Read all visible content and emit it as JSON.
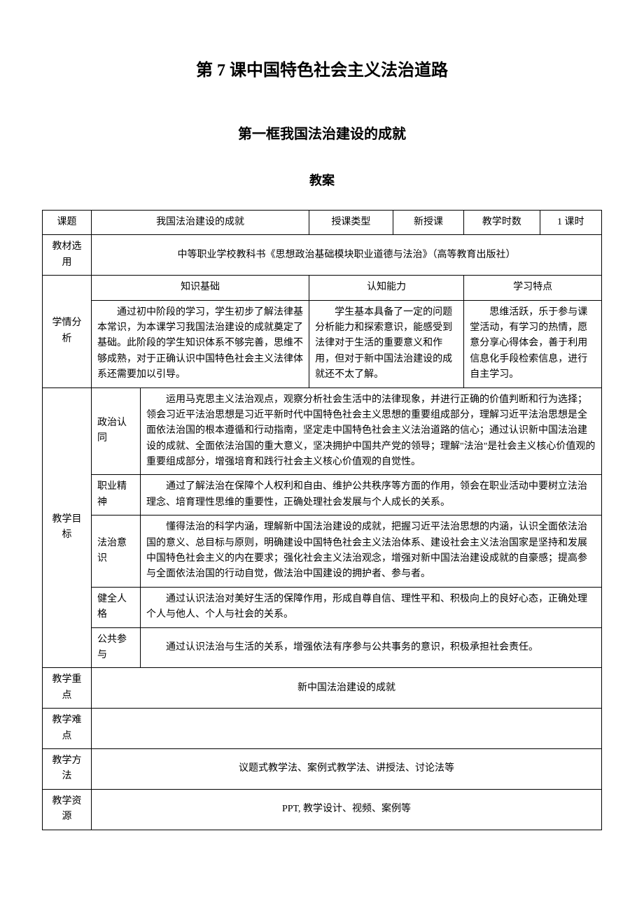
{
  "titles": {
    "main": "第 7 课中国特色社会主义法治道路",
    "sub": "第一框我国法治建设的成就",
    "label": "教案"
  },
  "row1": {
    "label1": "课题",
    "val1": "我国法治建设的成就",
    "label2": "授课类型",
    "val2": "新授课",
    "label3": "教学时数",
    "val3": "1 课时"
  },
  "row2": {
    "label": "教材选用",
    "content": "中等职业学校教科书《思想政治基础模块职业道德与法治》（高等教育出版社）"
  },
  "analysis": {
    "label": "学情分析",
    "headers": {
      "h1": "知识基础",
      "h2": "认知能力",
      "h3": "学习特点"
    },
    "c1": "　　通过初中阶段的学习，学生初步了解法律基本常识，为本课学习我国法治建设的成就奠定了基础。此阶段的学生知识体系不够完善，思维不够成熟，对于正确认识中国特色社会主义法律体系还需要加以引导。",
    "c2": "　　学生基本具备了一定的问题分析能力和探索意识，能感受到法律对于生活的重要意义和作用，但对于新中国法治建设的成就还不太了解。",
    "c3": "　　思维活跃，乐于参与课堂活动，有学习的热情，愿意分享心得体会，善于利用信息化手段检索信息，进行自主学习。"
  },
  "goals": {
    "label": "教学目标",
    "items": [
      {
        "name": "政治认同",
        "content": "　　运用马克思主义法治观点，观察分析社会生活中的法律现象，并进行正确的价值判断和行为选择；领会习近平法治思想是习近平新时代中国特色社会主义思想的重要组成部分，理解习近平法治思想是全面依法治国的根本遵循和行动指南，坚定走中国特色社会主义法治道路的信心；通过认识新中国法治建设的成就、全面依法治国的重大意义，坚决拥护中国共产党的领导；理解\"法治\"是社会主义核心价值观的重要组成部分，增强培育和践行社会主义核心价值观的自觉性。"
      },
      {
        "name": "职业精神",
        "content": "　　通过了解法治在保障个人权利和自由、维护公共秩序等方面的作用，领会在职业活动中要树立法治理念、培育理性思维的重要性，正确处理社会发展与个人成长的关系。"
      },
      {
        "name": "法治意识",
        "content": "　　懂得法治的科学内涵，理解新中国法治建设的成就，把握习近平法治思想的内涵，认识全面依法治国的意义、总目标与原则，明确建设中国特色社会主义法治体系、建设社会主义法治国家是坚持和发展中国特色社会主义的内在要求；强化社会主义法治观念，增强对新中国法治建设成就的自豪感；提高参与全面依法治国的行动自觉，做法治中国建设的拥护者、参与者。"
      },
      {
        "name": "健全人格",
        "content": "　　通过认识法治对美好生活的保障作用，形成自尊自信、理性平和、积极向上的良好心态，正确处理个人与他人、个人与社会的关系。"
      },
      {
        "name": "公共参与",
        "content": "　　通过认识法治与生活的关系，增强依法有序参与公共事务的意识，积极承担社会责任。"
      }
    ]
  },
  "focus": {
    "label": "教学重点",
    "content": "新中国法治建设的成就"
  },
  "difficulty": {
    "label": "教学难点",
    "content": ""
  },
  "methods": {
    "label": "教学方法",
    "content": "议题式教学法、案例式教学法、讲授法、讨论法等"
  },
  "resources": {
    "label": "教学资源",
    "content": "PPT, 教学设计、视频、案例等"
  }
}
